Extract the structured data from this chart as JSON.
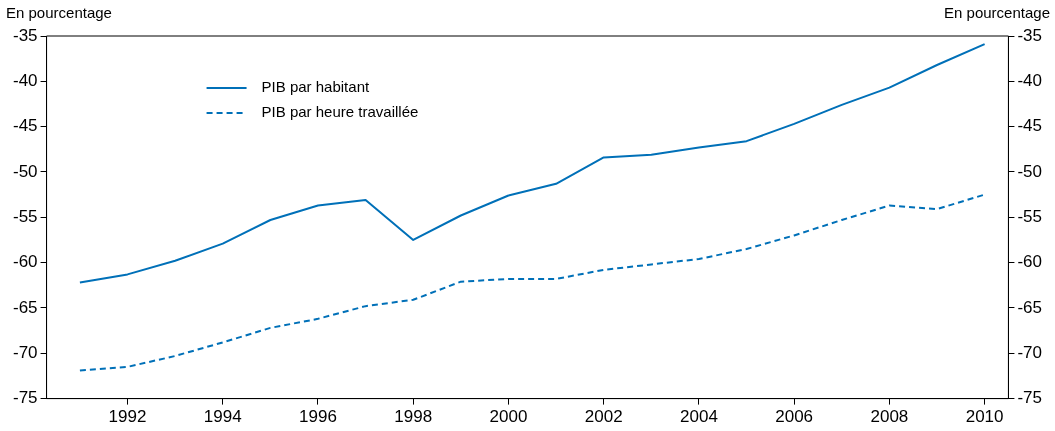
{
  "chart_data": {
    "type": "line",
    "ylabel": "En pourcentage",
    "y2label": "En pourcentage",
    "x": [
      1991,
      1992,
      1993,
      1994,
      1995,
      1996,
      1997,
      1998,
      1999,
      2000,
      2001,
      2002,
      2003,
      2004,
      2005,
      2006,
      2007,
      2008,
      2009,
      2010
    ],
    "xlim": [
      1990.3,
      2010.5
    ],
    "xticks": [
      1992,
      1994,
      1996,
      1998,
      2000,
      2002,
      2004,
      2006,
      2008,
      2010
    ],
    "ylim": [
      -75,
      -35
    ],
    "yticks": [
      -75,
      -70,
      -65,
      -60,
      -55,
      -50,
      -45,
      -40,
      -35
    ],
    "y2lim": [
      -75,
      -35
    ],
    "y2ticks": [
      -75,
      -70,
      -65,
      -60,
      -55,
      -50,
      -45,
      -40,
      -35
    ],
    "grid": false,
    "legend": "top left",
    "marker": "none",
    "series": [
      {
        "name": "PIB par habitant",
        "color": "#0070b8",
        "line_style": "solid",
        "values": [
          -62.2,
          -61.3,
          -59.8,
          -57.9,
          -55.3,
          -53.7,
          -53.1,
          -57.5,
          -54.8,
          -52.6,
          -51.3,
          -48.4,
          -48.1,
          -47.3,
          -46.6,
          -44.7,
          -42.6,
          -40.7,
          -38.2,
          -35.9
        ]
      },
      {
        "name": "PIB par heure travaillée",
        "color": "#0070b8",
        "line_style": "dashed",
        "values": [
          -71.9,
          -71.5,
          -70.3,
          -68.8,
          -67.2,
          -66.2,
          -64.8,
          -64.1,
          -62.1,
          -61.8,
          -61.8,
          -60.8,
          -60.2,
          -59.6,
          -58.5,
          -57.0,
          -55.3,
          -53.7,
          -54.1,
          -52.5
        ]
      }
    ]
  }
}
